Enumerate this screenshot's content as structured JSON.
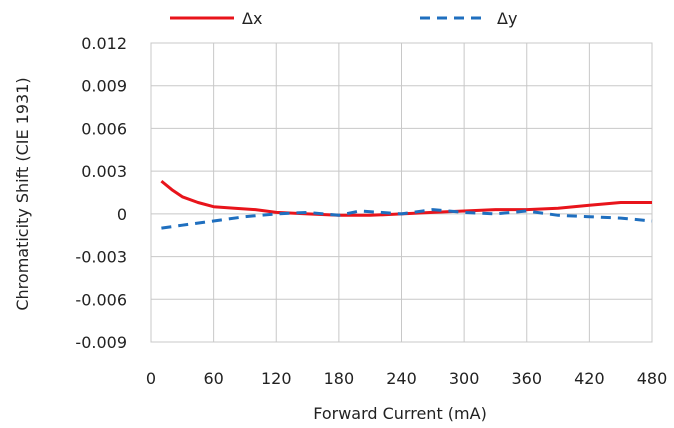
{
  "chart_data": {
    "type": "line",
    "title": "",
    "xlabel": "Forward Current (mA)",
    "ylabel": "Chromaticity Shift (CIE 1931)",
    "xlim": [
      0,
      480
    ],
    "ylim": [
      -0.009,
      0.012
    ],
    "xticks": [
      0,
      60,
      120,
      180,
      240,
      300,
      360,
      420,
      480
    ],
    "xtick_labels": [
      "0",
      "60",
      "120",
      "180",
      "240",
      "300",
      "360",
      "420",
      "480"
    ],
    "yticks": [
      -0.009,
      -0.006,
      -0.003,
      0,
      0.003,
      0.006,
      0.009,
      0.012
    ],
    "ytick_labels": [
      "-0.009",
      "-0.006",
      "-0.003",
      "0",
      "0.003",
      "0.006",
      "0.009",
      "0.012"
    ],
    "grid": true,
    "legend_position": "top",
    "series": [
      {
        "name": "Δx",
        "color": "#e8141b",
        "style": "solid",
        "points": [
          [
            10,
            0.0023
          ],
          [
            20,
            0.0017
          ],
          [
            30,
            0.0012
          ],
          [
            45,
            0.0008
          ],
          [
            60,
            0.0005
          ],
          [
            80,
            0.0004
          ],
          [
            100,
            0.0003
          ],
          [
            120,
            0.0001
          ],
          [
            150,
            0.0
          ],
          [
            180,
            -0.0001
          ],
          [
            210,
            -0.0001
          ],
          [
            240,
            0.0
          ],
          [
            270,
            0.0001
          ],
          [
            300,
            0.0002
          ],
          [
            330,
            0.0003
          ],
          [
            360,
            0.0003
          ],
          [
            390,
            0.0004
          ],
          [
            420,
            0.0006
          ],
          [
            450,
            0.0008
          ],
          [
            480,
            0.0008
          ]
        ]
      },
      {
        "name": "Δy",
        "color": "#1f6fbf",
        "style": "dashed",
        "points": [
          [
            10,
            -0.001
          ],
          [
            30,
            -0.0008
          ],
          [
            60,
            -0.0005
          ],
          [
            90,
            -0.0002
          ],
          [
            120,
            0.0
          ],
          [
            150,
            0.0001
          ],
          [
            180,
            -0.0001
          ],
          [
            200,
            0.0002
          ],
          [
            220,
            0.0001
          ],
          [
            240,
            0.0
          ],
          [
            270,
            0.0003
          ],
          [
            300,
            0.0001
          ],
          [
            330,
            0.0
          ],
          [
            360,
            0.0002
          ],
          [
            390,
            -0.0001
          ],
          [
            420,
            -0.0002
          ],
          [
            450,
            -0.0003
          ],
          [
            480,
            -0.0005
          ]
        ]
      }
    ]
  }
}
